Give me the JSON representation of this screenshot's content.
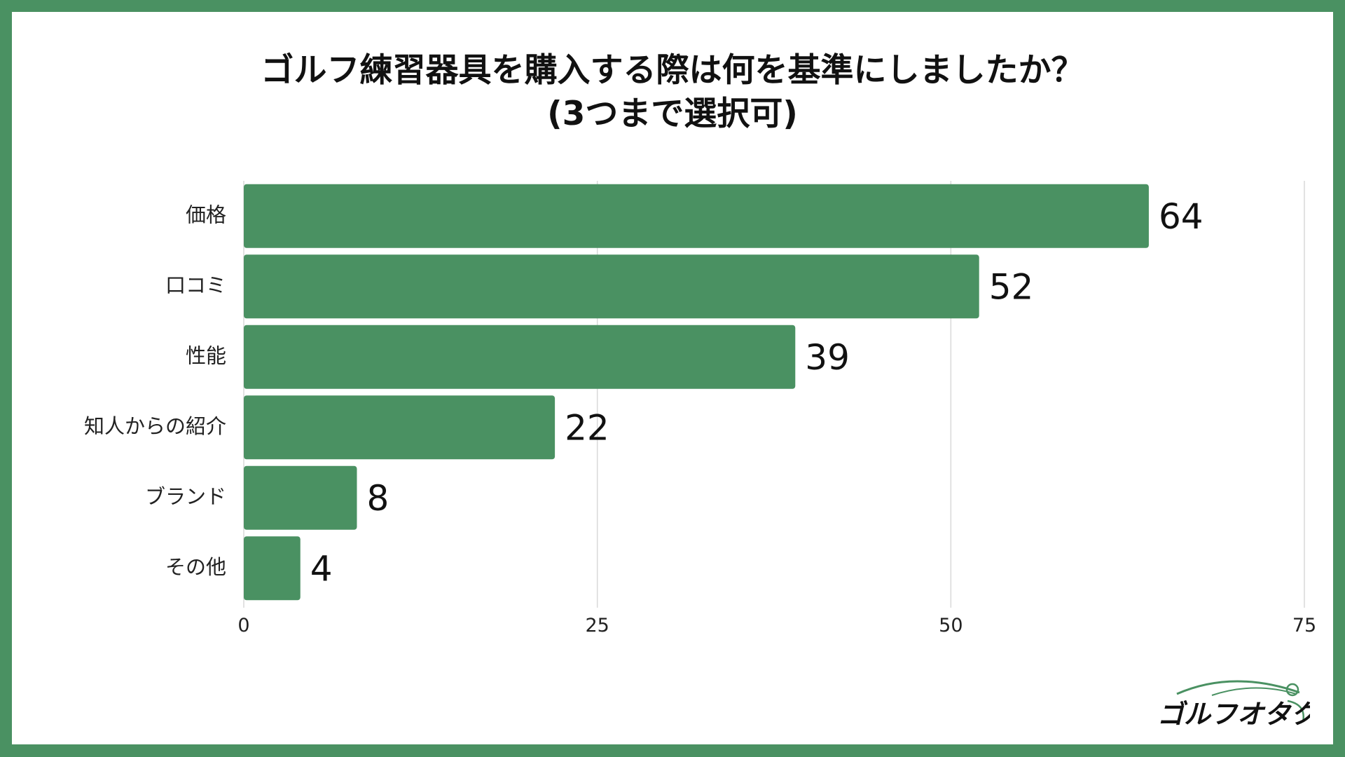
{
  "colors": {
    "frame": "#4a9162",
    "bar": "#4a9162",
    "grid": "#d9d9d9"
  },
  "chart_data": {
    "type": "bar",
    "orientation": "horizontal",
    "title_lines": [
      "ゴルフ練習器具を購入する際は何を基準にしましたか？",
      "(3つまで選択可)"
    ],
    "categories": [
      "価格",
      "口コミ",
      "性能",
      "知人からの紹介",
      "ブランド",
      "その他"
    ],
    "values": [
      64,
      52,
      39,
      22,
      8,
      4
    ],
    "xlim": [
      0,
      75
    ],
    "xticks": [
      0,
      25,
      50,
      75
    ],
    "grid": true,
    "data_labels": true
  },
  "logo": {
    "text": "ゴルフオタク"
  }
}
